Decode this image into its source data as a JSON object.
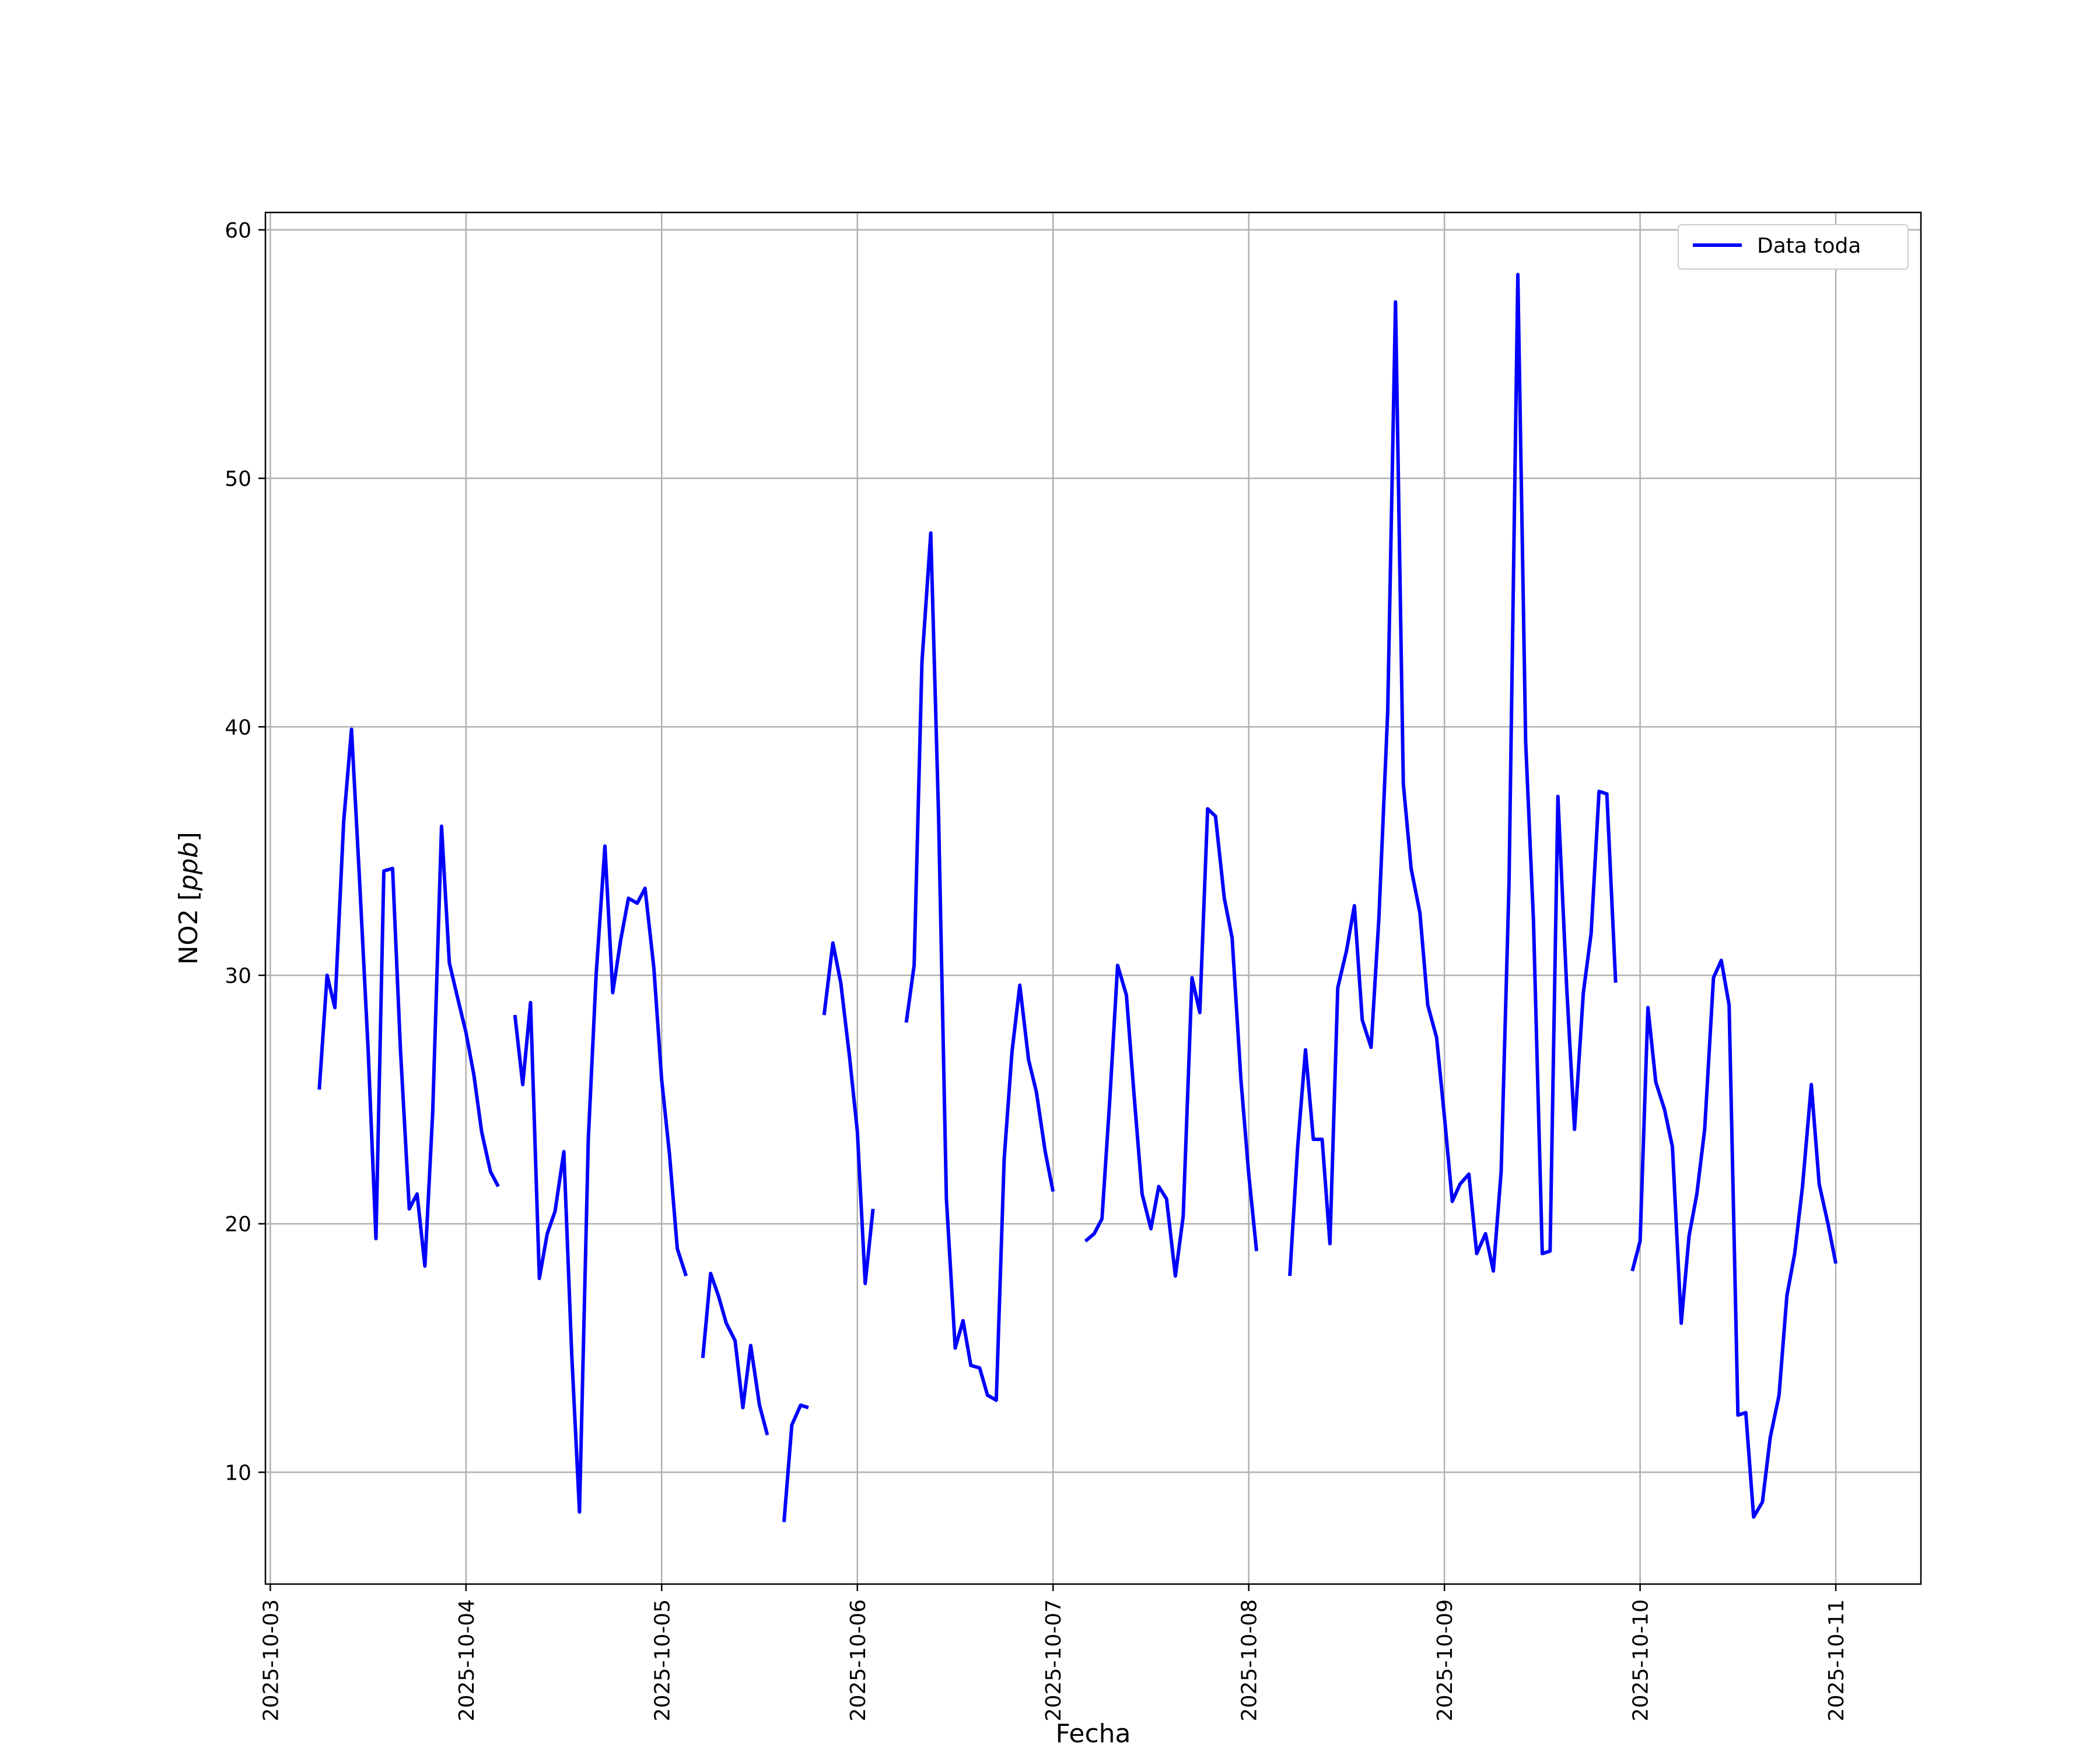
{
  "chart_data": {
    "type": "line",
    "title": "",
    "xlabel": "Fecha",
    "ylabel": "NO2 [ppb]",
    "ylabel_parts": {
      "base": "NO2 [",
      "italic": "ppb",
      "close": "]"
    },
    "xlim": [
      -0.025,
      8.435
    ],
    "ylim": [
      5.5,
      60.7
    ],
    "x_ticks": [
      {
        "value": 0,
        "label": "2025-10-03"
      },
      {
        "value": 1,
        "label": "2025-10-04"
      },
      {
        "value": 2,
        "label": "2025-10-05"
      },
      {
        "value": 3,
        "label": "2025-10-06"
      },
      {
        "value": 4,
        "label": "2025-10-07"
      },
      {
        "value": 5,
        "label": "2025-10-08"
      },
      {
        "value": 6,
        "label": "2025-10-09"
      },
      {
        "value": 7,
        "label": "2025-10-10"
      },
      {
        "value": 8,
        "label": "2025-10-11"
      }
    ],
    "y_ticks": [
      10,
      20,
      30,
      40,
      50,
      60
    ],
    "grid": true,
    "legend": {
      "position": "upper-right",
      "entries": [
        "Data toda"
      ]
    },
    "series": [
      {
        "name": "Data toda",
        "color": "#0000ff",
        "x_unit": "days since 2025-10-03 00:00",
        "segments": [
          [
            [
              0.25,
              25.4
            ],
            [
              0.29,
              30.0
            ],
            [
              0.33,
              28.7
            ],
            [
              0.375,
              36.2
            ],
            [
              0.415,
              39.9
            ],
            [
              0.455,
              34.0
            ],
            [
              0.5,
              27.0
            ],
            [
              0.54,
              19.4
            ],
            [
              0.58,
              34.2
            ],
            [
              0.625,
              34.3
            ],
            [
              0.665,
              27.0
            ],
            [
              0.71,
              20.6
            ],
            [
              0.75,
              21.2
            ],
            [
              0.79,
              18.3
            ],
            [
              0.83,
              24.5
            ],
            [
              0.875,
              36.0
            ],
            [
              0.915,
              30.5
            ],
            [
              0.96,
              29.0
            ],
            [
              1.0,
              27.7
            ],
            [
              1.04,
              26.0
            ],
            [
              1.08,
              23.7
            ],
            [
              1.125,
              22.1
            ],
            [
              1.165,
              21.5
            ]
          ],
          [
            [
              1.25,
              28.4
            ],
            [
              1.29,
              25.6
            ],
            [
              1.33,
              28.9
            ],
            [
              1.375,
              17.8
            ],
            [
              1.415,
              19.6
            ],
            [
              1.455,
              20.5
            ],
            [
              1.5,
              22.9
            ],
            [
              1.54,
              14.8
            ],
            [
              1.58,
              8.4
            ],
            [
              1.625,
              23.4
            ],
            [
              1.665,
              30.0
            ],
            [
              1.71,
              35.2
            ],
            [
              1.75,
              29.3
            ],
            [
              1.79,
              31.4
            ],
            [
              1.83,
              33.1
            ],
            [
              1.875,
              32.9
            ],
            [
              1.915,
              33.5
            ],
            [
              1.96,
              30.3
            ],
            [
              2.0,
              25.8
            ],
            [
              2.04,
              22.8
            ],
            [
              2.08,
              19.0
            ],
            [
              2.125,
              17.9
            ]
          ],
          [
            [
              2.21,
              14.6
            ],
            [
              2.25,
              18.0
            ],
            [
              2.29,
              17.1
            ],
            [
              2.33,
              16.0
            ],
            [
              2.375,
              15.3
            ],
            [
              2.415,
              12.6
            ],
            [
              2.455,
              15.1
            ],
            [
              2.5,
              12.7
            ],
            [
              2.54,
              11.5
            ]
          ],
          [
            [
              2.625,
              8.0
            ],
            [
              2.665,
              11.9
            ],
            [
              2.71,
              12.7
            ],
            [
              2.75,
              12.6
            ]
          ],
          [
            [
              2.83,
              28.4
            ],
            [
              2.875,
              31.3
            ],
            [
              2.915,
              29.7
            ],
            [
              2.96,
              26.7
            ],
            [
              3.0,
              23.7
            ],
            [
              3.04,
              17.6
            ],
            [
              3.08,
              20.6
            ]
          ],
          [
            [
              3.25,
              28.1
            ],
            [
              3.29,
              30.4
            ],
            [
              3.33,
              42.6
            ],
            [
              3.375,
              47.8
            ],
            [
              3.415,
              36.4
            ],
            [
              3.455,
              21.0
            ],
            [
              3.5,
              15.0
            ],
            [
              3.54,
              16.1
            ],
            [
              3.58,
              14.3
            ],
            [
              3.625,
              14.2
            ],
            [
              3.665,
              13.1
            ],
            [
              3.71,
              12.9
            ],
            [
              3.75,
              22.6
            ],
            [
              3.79,
              26.9
            ],
            [
              3.83,
              29.6
            ],
            [
              3.875,
              26.6
            ],
            [
              3.915,
              25.3
            ],
            [
              3.96,
              22.9
            ],
            [
              4.0,
              21.3
            ]
          ],
          [
            [
              4.165,
              19.3
            ],
            [
              4.21,
              19.6
            ],
            [
              4.25,
              20.2
            ],
            [
              4.29,
              25.0
            ],
            [
              4.33,
              30.4
            ],
            [
              4.375,
              29.2
            ],
            [
              4.415,
              25.1
            ],
            [
              4.455,
              21.2
            ],
            [
              4.5,
              19.8
            ],
            [
              4.54,
              21.5
            ],
            [
              4.58,
              21.0
            ],
            [
              4.625,
              17.9
            ],
            [
              4.665,
              20.3
            ],
            [
              4.71,
              29.9
            ],
            [
              4.75,
              28.5
            ],
            [
              4.79,
              36.7
            ],
            [
              4.83,
              36.4
            ],
            [
              4.875,
              33.1
            ],
            [
              4.915,
              31.5
            ],
            [
              4.96,
              25.8
            ],
            [
              5.0,
              22.0
            ],
            [
              5.04,
              18.9
            ]
          ],
          [
            [
              5.21,
              17.9
            ],
            [
              5.25,
              23.1
            ],
            [
              5.29,
              27.0
            ],
            [
              5.33,
              23.4
            ],
            [
              5.375,
              23.4
            ],
            [
              5.415,
              19.2
            ],
            [
              5.455,
              29.5
            ],
            [
              5.5,
              31.0
            ],
            [
              5.54,
              32.8
            ],
            [
              5.58,
              28.2
            ],
            [
              5.625,
              27.1
            ],
            [
              5.665,
              32.3
            ],
            [
              5.71,
              40.6
            ],
            [
              5.75,
              57.1
            ],
            [
              5.79,
              37.7
            ],
            [
              5.83,
              34.3
            ],
            [
              5.875,
              32.5
            ],
            [
              5.915,
              28.8
            ],
            [
              5.96,
              27.5
            ],
            [
              6.0,
              24.3
            ],
            [
              6.04,
              20.9
            ],
            [
              6.08,
              21.6
            ],
            [
              6.125,
              22.0
            ],
            [
              6.165,
              18.8
            ],
            [
              6.21,
              19.6
            ],
            [
              6.25,
              18.1
            ],
            [
              6.29,
              22.1
            ],
            [
              6.33,
              33.7
            ],
            [
              6.375,
              58.2
            ],
            [
              6.415,
              39.4
            ],
            [
              6.455,
              32.2
            ],
            [
              6.5,
              18.8
            ],
            [
              6.54,
              18.9
            ],
            [
              6.58,
              37.2
            ],
            [
              6.625,
              29.5
            ],
            [
              6.665,
              23.8
            ],
            [
              6.71,
              29.3
            ],
            [
              6.75,
              31.7
            ],
            [
              6.79,
              37.4
            ],
            [
              6.83,
              37.3
            ],
            [
              6.875,
              29.7
            ]
          ],
          [
            [
              6.96,
              18.1
            ],
            [
              7.0,
              19.3
            ],
            [
              7.04,
              28.7
            ],
            [
              7.08,
              25.7
            ],
            [
              7.125,
              24.6
            ],
            [
              7.165,
              23.1
            ],
            [
              7.21,
              16.0
            ],
            [
              7.25,
              19.5
            ],
            [
              7.29,
              21.2
            ],
            [
              7.33,
              23.8
            ],
            [
              7.375,
              29.9
            ],
            [
              7.415,
              30.6
            ],
            [
              7.455,
              28.8
            ],
            [
              7.5,
              12.3
            ],
            [
              7.54,
              12.4
            ],
            [
              7.58,
              8.2
            ],
            [
              7.625,
              8.8
            ],
            [
              7.665,
              11.4
            ],
            [
              7.71,
              13.1
            ],
            [
              7.75,
              17.1
            ],
            [
              7.79,
              18.8
            ],
            [
              7.83,
              21.5
            ],
            [
              7.875,
              25.6
            ],
            [
              7.915,
              21.6
            ],
            [
              7.96,
              20.0
            ],
            [
              8.0,
              18.4
            ]
          ]
        ]
      }
    ]
  }
}
